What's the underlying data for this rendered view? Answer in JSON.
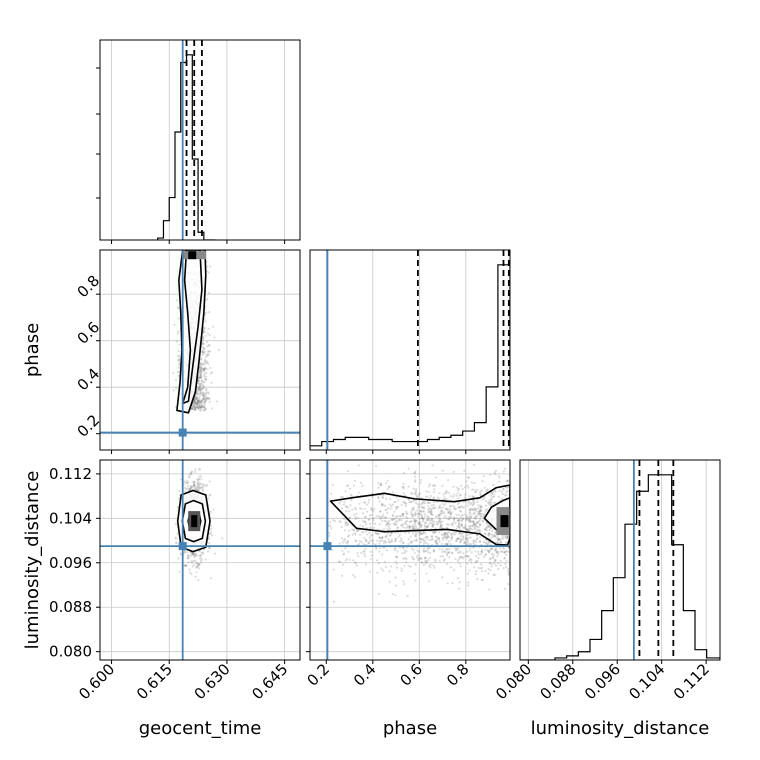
{
  "chart_data": {
    "type": "corner",
    "parameters": [
      "geocent_time",
      "phase",
      "luminosity_distance"
    ],
    "truths": {
      "geocent_time": 0.6185,
      "phase": 0.205,
      "luminosity_distance": 0.099
    },
    "colors": {
      "truth": "#4682b4",
      "hist": "#000000",
      "grid": "#c8c8c8",
      "points": "#808080"
    },
    "axes": {
      "geocent_time": {
        "lim": [
          0.597,
          0.649
        ],
        "ticks": [
          0.6,
          0.615,
          0.63,
          0.645
        ],
        "tick_labels": [
          "0.600",
          "0.615",
          "0.630",
          "0.645"
        ],
        "label": "geocent_time"
      },
      "phase": {
        "lim": [
          0.13,
          0.99
        ],
        "ticks": [
          0.2,
          0.4,
          0.6,
          0.8
        ],
        "tick_labels": [
          "0.2",
          "0.4",
          "0.6",
          "0.8"
        ],
        "label": "phase"
      },
      "luminosity_distance": {
        "lim": [
          0.0785,
          0.1145
        ],
        "ticks": [
          0.08,
          0.088,
          0.096,
          0.104,
          0.112
        ],
        "tick_labels": [
          "0.080",
          "0.088",
          "0.096",
          "0.104",
          "0.112"
        ],
        "label": "luminosity_distance"
      }
    },
    "grid": true,
    "histograms": {
      "geocent_time": {
        "bin_edges": [
          0.612,
          0.6135,
          0.615,
          0.6165,
          0.618,
          0.6195,
          0.621,
          0.6225,
          0.624,
          0.6255,
          0.627
        ],
        "counts": [
          1,
          10,
          22,
          56,
          92,
          96,
          42,
          4,
          0,
          0
        ],
        "quantiles": [
          0.6195,
          0.6215,
          0.6235
        ]
      },
      "phase": {
        "bin_edges": [
          0.13,
          0.1805,
          0.231,
          0.2815,
          0.332,
          0.3825,
          0.433,
          0.4835,
          0.534,
          0.5845,
          0.635,
          0.6855,
          0.736,
          0.7865,
          0.837,
          0.8875,
          0.938,
          0.99
        ],
        "counts": [
          2,
          4,
          5,
          6,
          6,
          5,
          5,
          4,
          4,
          4,
          5,
          6,
          7,
          9,
          13,
          30,
          88
        ],
        "quantiles": [
          0.594,
          0.962,
          0.985
        ]
      },
      "luminosity_distance": {
        "bin_edges": [
          0.0785,
          0.0806,
          0.0827,
          0.0848,
          0.0869,
          0.089,
          0.0911,
          0.0932,
          0.0953,
          0.0974,
          0.0995,
          0.1016,
          0.1037,
          0.1058,
          0.1079,
          0.11,
          0.1121,
          0.1145
        ],
        "counts": [
          0,
          0,
          0,
          1,
          2,
          4,
          10,
          24,
          40,
          66,
          82,
          90,
          90,
          56,
          24,
          5,
          1
        ],
        "quantiles": [
          0.1,
          0.1034,
          0.1061
        ]
      }
    },
    "density_2d": [
      {
        "x": "geocent_time",
        "y": "phase",
        "center": [
          0.6215,
          0.66
        ],
        "spread": [
          0.0018,
          0.2
        ],
        "n_points": 1300,
        "contours": [
          [
            [
              0.6195,
              0.99
            ],
            [
              0.619,
              0.86
            ],
            [
              0.6198,
              0.72
            ],
            [
              0.6205,
              0.56
            ],
            [
              0.6198,
              0.4
            ],
            [
              0.6185,
              0.33
            ],
            [
              0.62,
              0.34
            ],
            [
              0.6212,
              0.5
            ],
            [
              0.6225,
              0.66
            ],
            [
              0.6235,
              0.82
            ],
            [
              0.6232,
              0.92
            ],
            [
              0.623,
              0.99
            ]
          ],
          [
            [
              0.6185,
              0.99
            ],
            [
              0.6175,
              0.86
            ],
            [
              0.618,
              0.72
            ],
            [
              0.6183,
              0.56
            ],
            [
              0.6178,
              0.42
            ],
            [
              0.617,
              0.3
            ],
            [
              0.62,
              0.29
            ],
            [
              0.6218,
              0.38
            ],
            [
              0.6228,
              0.52
            ],
            [
              0.624,
              0.72
            ],
            [
              0.6245,
              0.88
            ],
            [
              0.6243,
              0.99
            ]
          ]
        ]
      },
      {
        "x": "geocent_time",
        "y": "luminosity_distance",
        "center": [
          0.6215,
          0.1035
        ],
        "spread": [
          0.0017,
          0.0034
        ],
        "n_points": 1300,
        "contours": [
          [
            [
              0.6215,
              0.105
            ],
            [
              0.6228,
              0.1048
            ],
            [
              0.6232,
              0.1035
            ],
            [
              0.6228,
              0.1022
            ],
            [
              0.6215,
              0.102
            ],
            [
              0.6203,
              0.1022
            ],
            [
              0.6199,
              0.1035
            ],
            [
              0.6203,
              0.1048
            ]
          ],
          [
            [
              0.6213,
              0.1072
            ],
            [
              0.6236,
              0.1066
            ],
            [
              0.6244,
              0.1035
            ],
            [
              0.6236,
              0.1004
            ],
            [
              0.6213,
              0.0998
            ],
            [
              0.6192,
              0.1004
            ],
            [
              0.6184,
              0.1035
            ],
            [
              0.6192,
              0.1066
            ]
          ],
          [
            [
              0.6212,
              0.109
            ],
            [
              0.6245,
              0.1082
            ],
            [
              0.6256,
              0.1035
            ],
            [
              0.6245,
              0.0988
            ],
            [
              0.6212,
              0.098
            ],
            [
              0.6181,
              0.0988
            ],
            [
              0.6172,
              0.1035
            ],
            [
              0.6181,
              0.1082
            ]
          ]
        ]
      },
      {
        "x": "phase",
        "y": "luminosity_distance",
        "center": [
          0.72,
          0.1025
        ],
        "spread": [
          0.22,
          0.004
        ],
        "n_points": 1700,
        "contours": [
          [
            [
              0.99,
              0.1005
            ],
            [
              0.98,
              0.0992
            ],
            [
              0.93,
              0.0993
            ],
            [
              0.86,
              0.1012
            ],
            [
              0.72,
              0.102
            ],
            [
              0.58,
              0.1018
            ],
            [
              0.45,
              0.1016
            ],
            [
              0.33,
              0.1022
            ],
            [
              0.218,
              0.1071
            ],
            [
              0.31,
              0.1077
            ],
            [
              0.45,
              0.1085
            ],
            [
              0.58,
              0.1075
            ],
            [
              0.75,
              0.107
            ],
            [
              0.86,
              0.1077
            ],
            [
              0.93,
              0.1095
            ],
            [
              0.99,
              0.11
            ]
          ],
          [
            [
              0.99,
              0.1015
            ],
            [
              0.97,
              0.1012
            ],
            [
              0.93,
              0.102
            ],
            [
              0.88,
              0.104
            ],
            [
              0.91,
              0.106
            ],
            [
              0.96,
              0.1072
            ],
            [
              0.99,
              0.1077
            ]
          ]
        ]
      }
    ]
  }
}
